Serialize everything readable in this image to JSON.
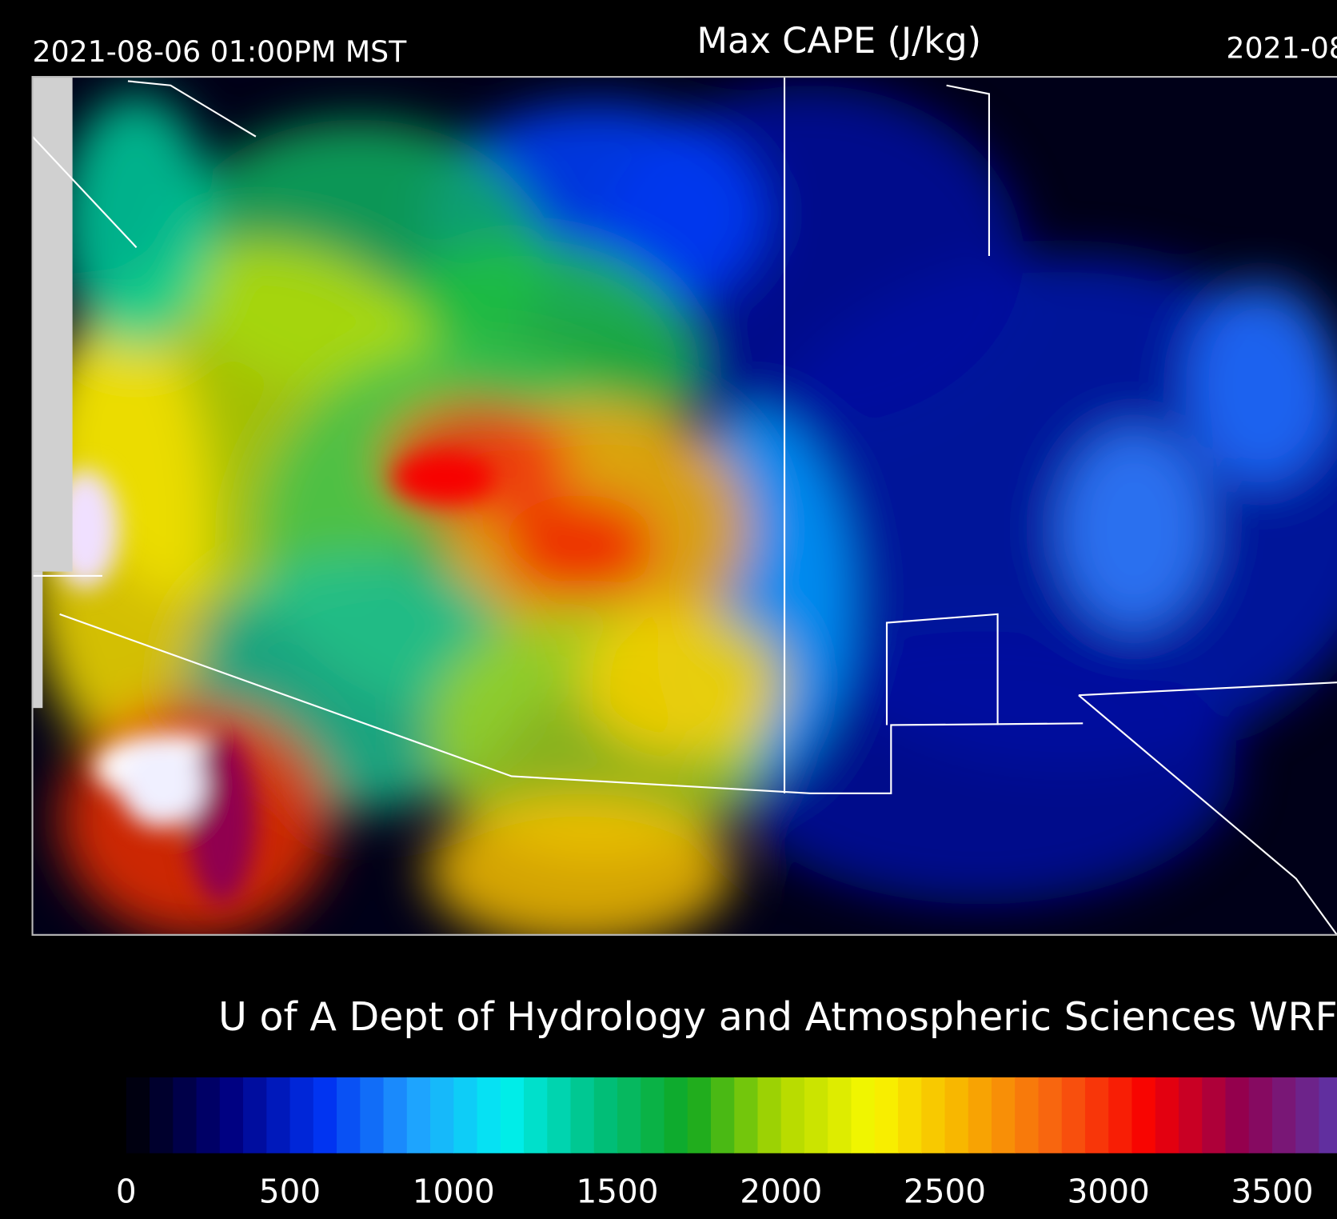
{
  "header": {
    "left": "2021-08-06 01:00PM MST",
    "title": "Max CAPE (J/kg)",
    "right": "2021-08"
  },
  "credit": "U of A Dept of Hydrology and Atmospheric Sciences WRF-R",
  "colorbar": {
    "lim": [
      0,
      4000
    ],
    "ticks": [
      0,
      500,
      1000,
      1500,
      2000,
      2500,
      3000,
      3500
    ],
    "colors": [
      "#000010",
      "#000080",
      "#0030f0",
      "#20a0ff",
      "#00f0f0",
      "#00c080",
      "#10a820",
      "#b0d800",
      "#f8f800",
      "#f8b000",
      "#f86010",
      "#f80000",
      "#900050",
      "#6030a0",
      "#c0a0e0"
    ]
  }
}
